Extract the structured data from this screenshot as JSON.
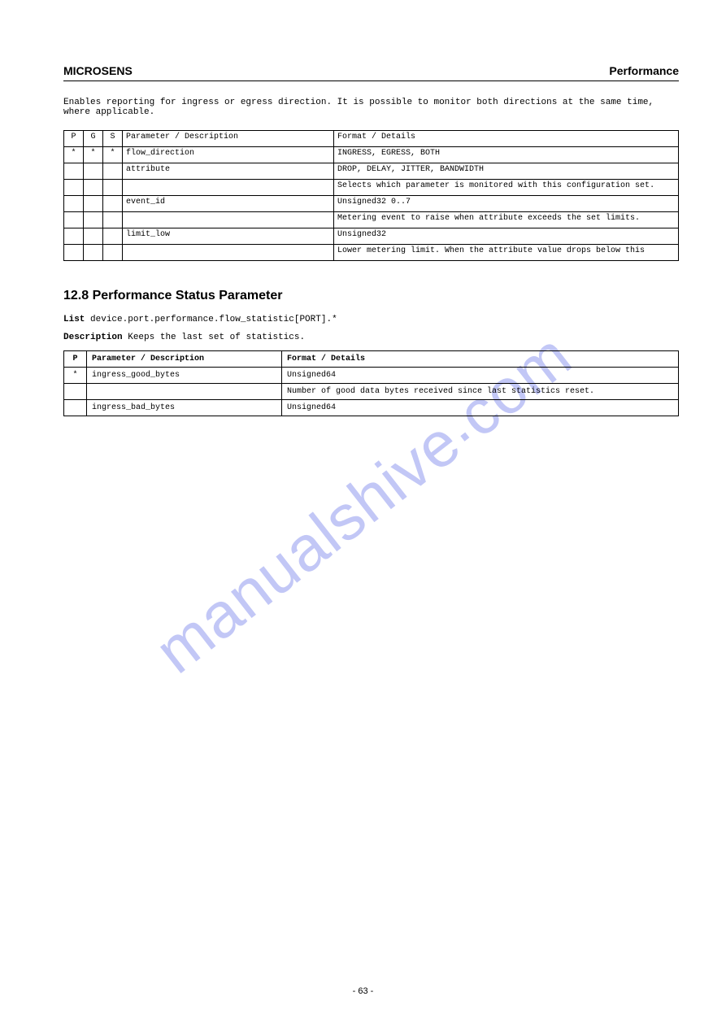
{
  "header": {
    "left": "MICROSENS",
    "right": "Performance"
  },
  "intro": "Enables reporting for ingress or egress direction. It is possible to monitor both directions at the same time, where applicable.",
  "table1": {
    "headers": [
      "P",
      "G",
      "S",
      "Parameter / Description",
      "Format / Details"
    ],
    "rows": [
      [
        "*",
        "*",
        "*",
        "flow_direction",
        "INGRESS, EGRESS, BOTH"
      ],
      [
        "",
        "",
        "",
        "attribute",
        "DROP, DELAY, JITTER, BANDWIDTH"
      ],
      [
        "",
        "",
        "",
        "",
        "Selects which parameter is monitored with this configuration set."
      ],
      [
        "",
        "",
        "",
        "event_id",
        "Unsigned32 0..7"
      ],
      [
        "",
        "",
        "",
        "",
        "Metering event to raise when attribute exceeds the set limits."
      ],
      [
        "",
        "",
        "",
        "limit_low",
        "Unsigned32"
      ],
      [
        "",
        "",
        "",
        "",
        "Lower metering limit. When the attribute value drops below this"
      ]
    ]
  },
  "section": {
    "title": "12.8   Performance Status Parameter",
    "listLabel": "List",
    "listText": "device.port.performance.flow_statistic[PORT].*",
    "descLabel": "Description",
    "descText": "Keeps the last set of statistics."
  },
  "table2": {
    "headers": [
      "P",
      "Parameter / Description",
      "Format / Details"
    ],
    "rows": [
      [
        "*",
        "ingress_good_bytes",
        "Unsigned64"
      ],
      [
        "",
        "",
        "Number of good data bytes received since last statistics reset."
      ],
      [
        "",
        "ingress_bad_bytes",
        "Unsigned64"
      ]
    ]
  },
  "footer": "- 63 -"
}
